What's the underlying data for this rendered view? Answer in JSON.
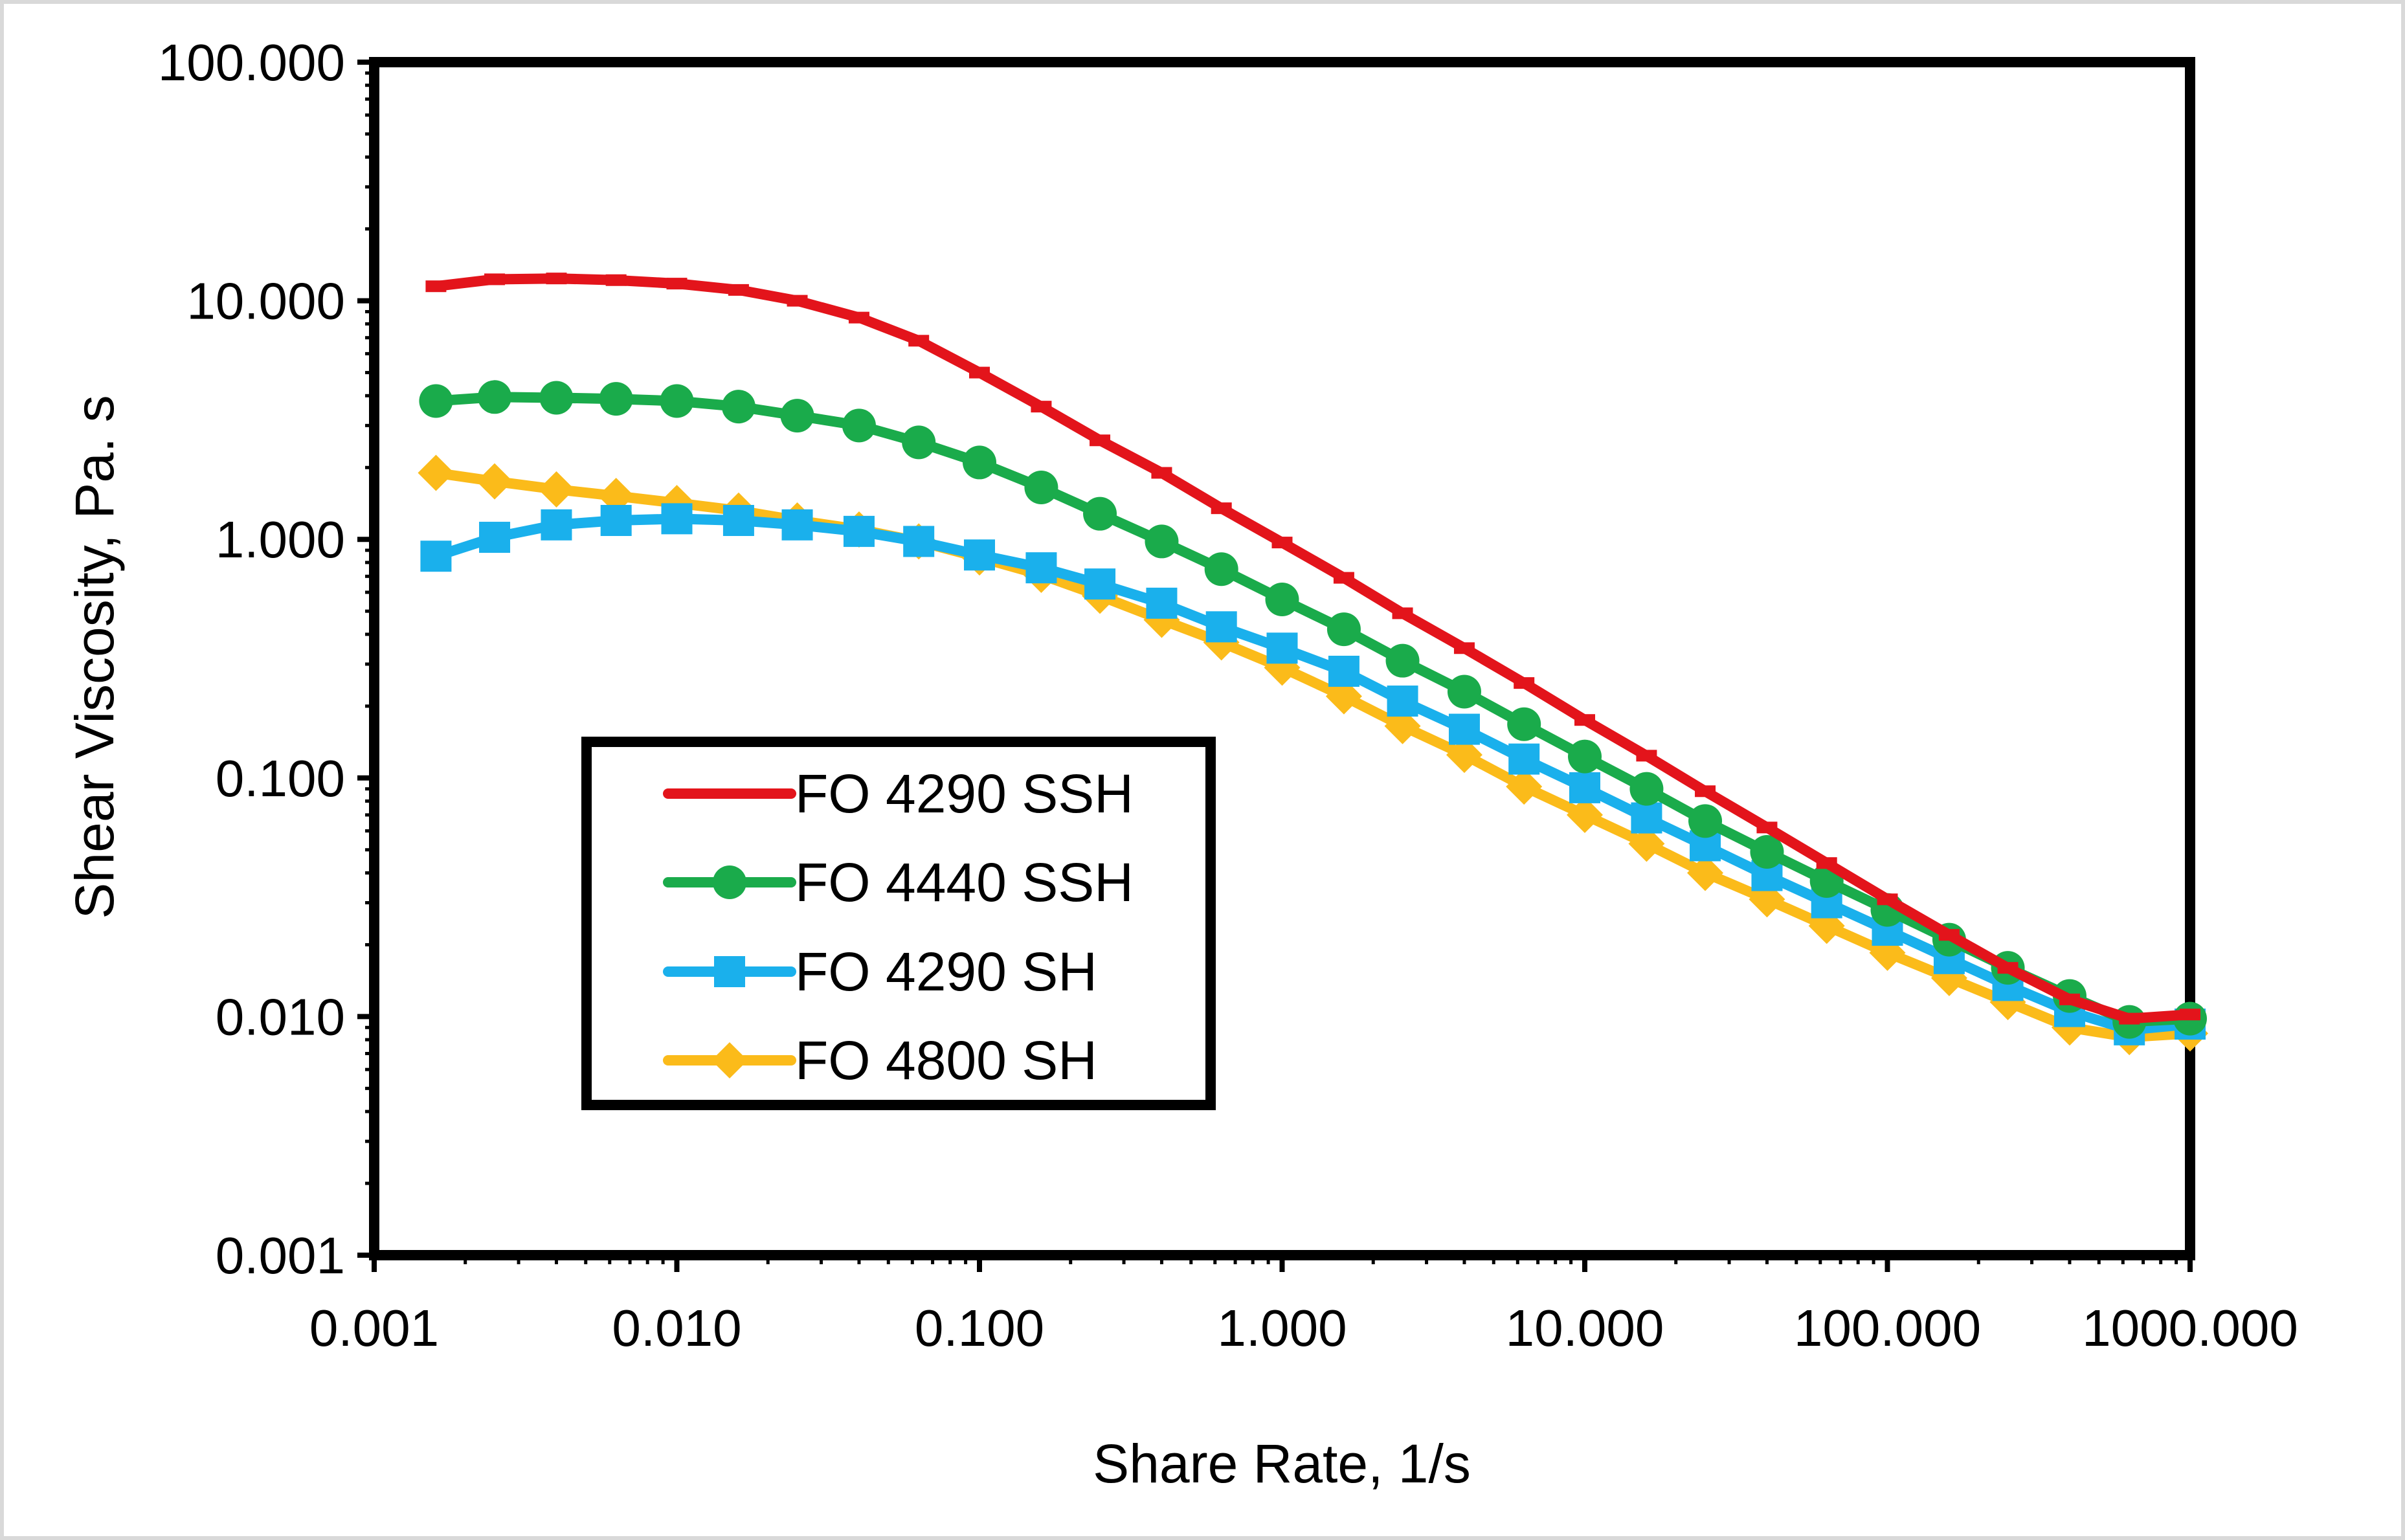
{
  "chart_data": {
    "type": "line",
    "title": "",
    "xlabel": "Share Rate, 1/s",
    "ylabel": "Shear Viscosity, Pa. s",
    "xscale": "log",
    "yscale": "log",
    "xlim": [
      0.001,
      1000
    ],
    "ylim": [
      0.001,
      100
    ],
    "grid": false,
    "legend_position": "lower-left",
    "x_tick_labels": [
      "0.001",
      "0.010",
      "0.100",
      "1.000",
      "10.000",
      "100.000",
      "1000.000"
    ],
    "y_tick_labels": [
      "0.001",
      "0.010",
      "0.100",
      "1.000",
      "10.000",
      "100.000"
    ],
    "x": [
      0.0016,
      0.0025,
      0.004,
      0.0063,
      0.01,
      0.016,
      0.025,
      0.04,
      0.063,
      0.1,
      0.16,
      0.25,
      0.4,
      0.63,
      1,
      1.6,
      2.5,
      4,
      6.3,
      10,
      16,
      25,
      40,
      63,
      100,
      160,
      250,
      400,
      630,
      1000
    ],
    "series": [
      {
        "name": "FO 4290 SSH",
        "color": "#e3141b",
        "marker": "dash",
        "values": [
          11.5,
          12.3,
          12.4,
          12.2,
          11.8,
          11.1,
          10.0,
          8.5,
          6.8,
          5.0,
          3.6,
          2.6,
          1.9,
          1.35,
          0.97,
          0.69,
          0.49,
          0.35,
          0.25,
          0.175,
          0.124,
          0.088,
          0.062,
          0.044,
          0.031,
          0.022,
          0.016,
          0.0118,
          0.0098,
          0.0102
        ]
      },
      {
        "name": "FO 4440 SSH",
        "color": "#1aab4b",
        "marker": "circle",
        "values": [
          3.8,
          3.95,
          3.92,
          3.88,
          3.8,
          3.6,
          3.3,
          3.0,
          2.55,
          2.1,
          1.65,
          1.28,
          0.98,
          0.75,
          0.56,
          0.42,
          0.31,
          0.23,
          0.168,
          0.123,
          0.09,
          0.066,
          0.049,
          0.037,
          0.028,
          0.021,
          0.016,
          0.0122,
          0.0095,
          0.0098
        ]
      },
      {
        "name": "FO 4290 SH",
        "color": "#1ab0ec",
        "marker": "square",
        "values": [
          0.85,
          1.02,
          1.15,
          1.2,
          1.22,
          1.2,
          1.15,
          1.08,
          0.98,
          0.86,
          0.76,
          0.65,
          0.54,
          0.43,
          0.35,
          0.28,
          0.21,
          0.16,
          0.12,
          0.091,
          0.068,
          0.052,
          0.039,
          0.03,
          0.023,
          0.0175,
          0.0135,
          0.0105,
          0.0088,
          0.0093
        ]
      },
      {
        "name": "FO 4800 SH",
        "color": "#fbbb1a",
        "marker": "diamond",
        "values": [
          1.9,
          1.75,
          1.62,
          1.52,
          1.42,
          1.32,
          1.2,
          1.1,
          0.98,
          0.84,
          0.71,
          0.58,
          0.46,
          0.37,
          0.29,
          0.22,
          0.165,
          0.125,
          0.092,
          0.07,
          0.053,
          0.04,
          0.031,
          0.024,
          0.0185,
          0.0145,
          0.0115,
          0.009,
          0.0082,
          0.0085
        ]
      }
    ]
  }
}
